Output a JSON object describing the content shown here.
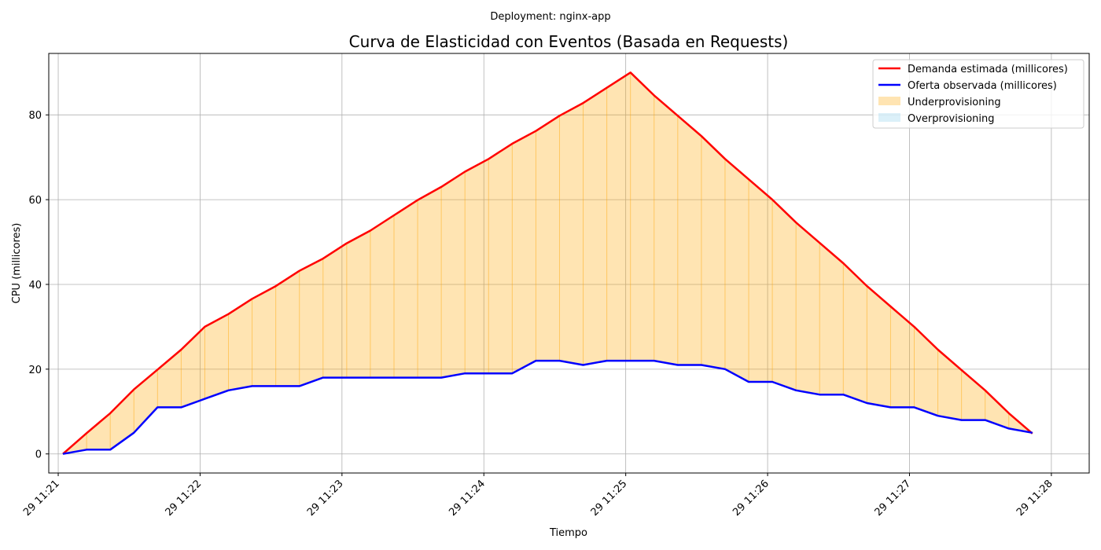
{
  "chart_data": {
    "type": "line",
    "suptitle": "Deployment: nginx-app",
    "title": "Curva de Elasticidad con Eventos (Basada en Requests)",
    "xlabel": "Tiempo",
    "ylabel": "CPU (millicores)",
    "x_ticks": [
      "29 11:21",
      "29 11:22",
      "29 11:23",
      "29 11:24",
      "29 11:25",
      "29 11:26",
      "29 11:27",
      "29 11:28"
    ],
    "y_ticks": [
      0,
      20,
      40,
      60,
      80
    ],
    "xlim": [
      "11:20:56",
      "11:28:16"
    ],
    "ylim": [
      -4.5,
      94.5
    ],
    "grid": true,
    "legend_position": "top-right",
    "x": [
      "11:21:02",
      "11:21:12",
      "11:21:22",
      "11:21:32",
      "11:21:42",
      "11:21:52",
      "11:22:02",
      "11:22:12",
      "11:22:22",
      "11:22:32",
      "11:22:42",
      "11:22:52",
      "11:23:02",
      "11:23:12",
      "11:23:22",
      "11:23:32",
      "11:23:42",
      "11:23:52",
      "11:24:02",
      "11:24:12",
      "11:24:22",
      "11:24:32",
      "11:24:42",
      "11:24:52",
      "11:25:02",
      "11:25:12",
      "11:25:22",
      "11:25:32",
      "11:25:42",
      "11:25:52",
      "11:26:02",
      "11:26:12",
      "11:26:22",
      "11:26:32",
      "11:26:42",
      "11:26:52",
      "11:27:02",
      "11:27:12",
      "11:27:22",
      "11:27:32",
      "11:27:42",
      "11:27:52"
    ],
    "series": [
      {
        "name": "Demanda estimada (millicores)",
        "color": "#ff0000",
        "values": [
          0,
          4.9,
          9.6,
          15.2,
          19.9,
          24.6,
          30.0,
          33.0,
          36.6,
          39.6,
          43.2,
          46.1,
          49.7,
          52.7,
          56.3,
          59.9,
          63.0,
          66.6,
          69.6,
          73.2,
          76.2,
          79.8,
          82.8,
          86.4,
          90.0,
          84.6,
          79.8,
          75.0,
          69.6,
          64.8,
          60.0,
          54.6,
          49.8,
          45.0,
          39.6,
          34.8,
          30.0,
          24.6,
          19.8,
          15.0,
          9.6,
          4.8
        ]
      },
      {
        "name": "Oferta observada (millicores)",
        "color": "#0000ff",
        "values": [
          0,
          1,
          1,
          5,
          11,
          11,
          13,
          15,
          16,
          16,
          16,
          18,
          18,
          18,
          18,
          18,
          18,
          19,
          19,
          19,
          22,
          22,
          21,
          22,
          22,
          22,
          21,
          21,
          20,
          17,
          17,
          15,
          14,
          14,
          12,
          11,
          11,
          9,
          8,
          8,
          6,
          5
        ]
      }
    ],
    "fills": [
      {
        "name": "Underprovisioning",
        "color": "#ffa500",
        "opacity": 0.3
      },
      {
        "name": "Overprovisioning",
        "color": "#87ceeb",
        "opacity": 0.3
      }
    ]
  }
}
